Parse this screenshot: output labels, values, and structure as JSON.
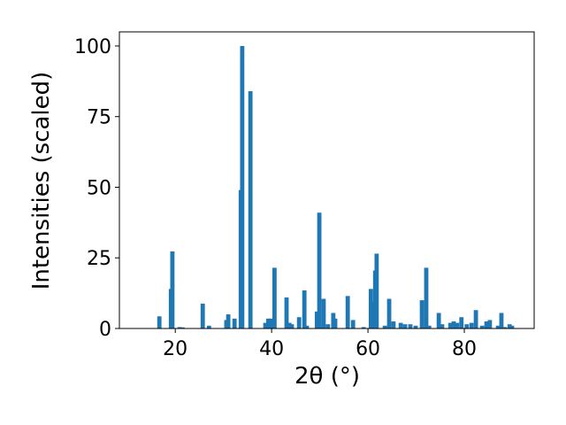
{
  "chart_data": {
    "type": "bar",
    "x_label": "2θ (°)",
    "y_label": "Intensities (scaled)",
    "color": "#1f77b4",
    "xlim": [
      8.4,
      94.5
    ],
    "ylim": [
      0,
      105
    ],
    "xticks": [
      20,
      40,
      60,
      80
    ],
    "yticks": [
      0,
      25,
      50,
      75,
      100
    ],
    "x": [
      16.7,
      19.1,
      19.4,
      20.9,
      21.5,
      25.7,
      27.0,
      30.6,
      31.0,
      32.3,
      33.6,
      33.9,
      35.6,
      38.7,
      39.3,
      39.8,
      40.6,
      43.1,
      43.7,
      44.2,
      45.7,
      46.8,
      47.3,
      49.4,
      49.9,
      50.8,
      51.7,
      52.8,
      53.2,
      55.8,
      56.9,
      59.1,
      60.6,
      61.1,
      61.5,
      61.8,
      63.5,
      64.4,
      65.3,
      66.8,
      67.7,
      68.8,
      69.9,
      71.2,
      72.1,
      72.7,
      74.7,
      75.4,
      77.1,
      77.8,
      78.5,
      79.4,
      80.5,
      81.5,
      82.4,
      83.7,
      84.6,
      85.3,
      87.0,
      87.7,
      88.4,
      89.4,
      89.9
    ],
    "values": [
      4.3,
      14,
      27.3,
      0.5,
      0.4,
      8.8,
      1,
      3,
      5,
      3.5,
      49,
      100,
      84,
      2,
      3.5,
      3.5,
      21.5,
      11,
      2,
      1.5,
      4,
      13.5,
      1,
      6,
      41,
      10.5,
      1.5,
      5.5,
      3.5,
      11.5,
      3,
      0.5,
      14,
      9.5,
      20.5,
      26.5,
      1,
      10.5,
      2.5,
      2,
      1.5,
      1.5,
      1,
      10,
      21.5,
      1,
      5.5,
      1.5,
      2,
      2.5,
      2,
      4,
      1.5,
      2,
      6.5,
      1,
      2.5,
      3,
      1,
      5.5,
      0.5,
      1.5,
      1
    ]
  }
}
